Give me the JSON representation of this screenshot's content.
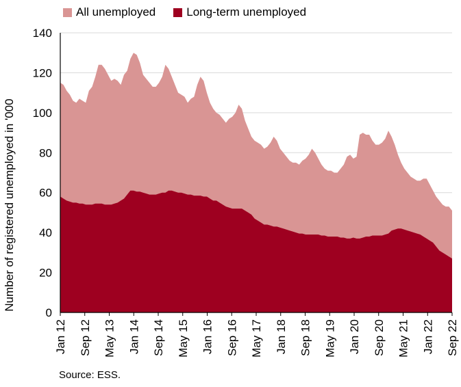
{
  "chart_data": {
    "type": "area",
    "title": "",
    "xlabel": "",
    "ylabel": "Number of registered unemployed in '000",
    "ylim": [
      0,
      140
    ],
    "yticks": [
      0,
      20,
      40,
      60,
      80,
      100,
      120,
      140
    ],
    "x_tick_labels": [
      "Jan 12",
      "Sep 12",
      "May 13",
      "Jan 14",
      "Sep 14",
      "May 15",
      "Jan 16",
      "Sep 16",
      "May 17",
      "Jan 18",
      "Sep 18",
      "May 19",
      "Jan 20",
      "Sep 20",
      "May 21",
      "Jan 22",
      "Sep 22"
    ],
    "x_range": [
      "Jan 12",
      "Sep 22"
    ],
    "legend_position": "top-left",
    "grid": "horizontal",
    "source": "Source: ESS.",
    "series": [
      {
        "name": "All unemployed",
        "color": "#d99594",
        "values": [
          115,
          114,
          111,
          109,
          106,
          105,
          107,
          106,
          105,
          111,
          113,
          118,
          124,
          124,
          122,
          119,
          116,
          117,
          116,
          114,
          119,
          121,
          127,
          130,
          129,
          125,
          119,
          117,
          115,
          113,
          113,
          115,
          118,
          124,
          122,
          118,
          114,
          110,
          109,
          108,
          105,
          107,
          108,
          114,
          118,
          116,
          110,
          105,
          102,
          100,
          99,
          97,
          95,
          97,
          98,
          100,
          104,
          102,
          96,
          92,
          88,
          86,
          85,
          84,
          82,
          83,
          85,
          88,
          86,
          82,
          80,
          78,
          76,
          75,
          75,
          74,
          76,
          77,
          79,
          82,
          80,
          77,
          74,
          72,
          71,
          71,
          70,
          70,
          72,
          74,
          78,
          79,
          77,
          78,
          89,
          90,
          89,
          89,
          86,
          84,
          84,
          85,
          87,
          91,
          88,
          84,
          79,
          75,
          72,
          70,
          68,
          67,
          66,
          66,
          67,
          67,
          64,
          61,
          58,
          56,
          54,
          53,
          53,
          51
        ]
      },
      {
        "name": "Long-term unemployed",
        "color": "#9e0020",
        "values": [
          58,
          57,
          56,
          55.5,
          55,
          55,
          54.5,
          54.5,
          54,
          54,
          54,
          54.5,
          54.5,
          54.5,
          54,
          54,
          54,
          54.5,
          55,
          56,
          57,
          59,
          61,
          61,
          60.5,
          60.5,
          60,
          59.5,
          59,
          59,
          59,
          59.5,
          60,
          60,
          61,
          61,
          60.5,
          60,
          60,
          59.5,
          59,
          59,
          58.5,
          58.5,
          58.5,
          58,
          58,
          57,
          56,
          56,
          55,
          54,
          53,
          52.5,
          52,
          52,
          52,
          52,
          51,
          50,
          49,
          47,
          46,
          45,
          44,
          44,
          43.5,
          43,
          43,
          42.5,
          42,
          41.5,
          41,
          40.5,
          40,
          39.5,
          39.5,
          39,
          39,
          39,
          39,
          39,
          38.5,
          38.5,
          38,
          38,
          38,
          38,
          37.5,
          37.5,
          37,
          37,
          37.5,
          37,
          37,
          37.5,
          38,
          38,
          38.5,
          38.5,
          38.5,
          38.5,
          39,
          39.5,
          41,
          41.5,
          42,
          42,
          41.5,
          41,
          40.5,
          40,
          39.5,
          39,
          38,
          37,
          36,
          35,
          33,
          31,
          30,
          29,
          28,
          27
        ]
      }
    ]
  }
}
